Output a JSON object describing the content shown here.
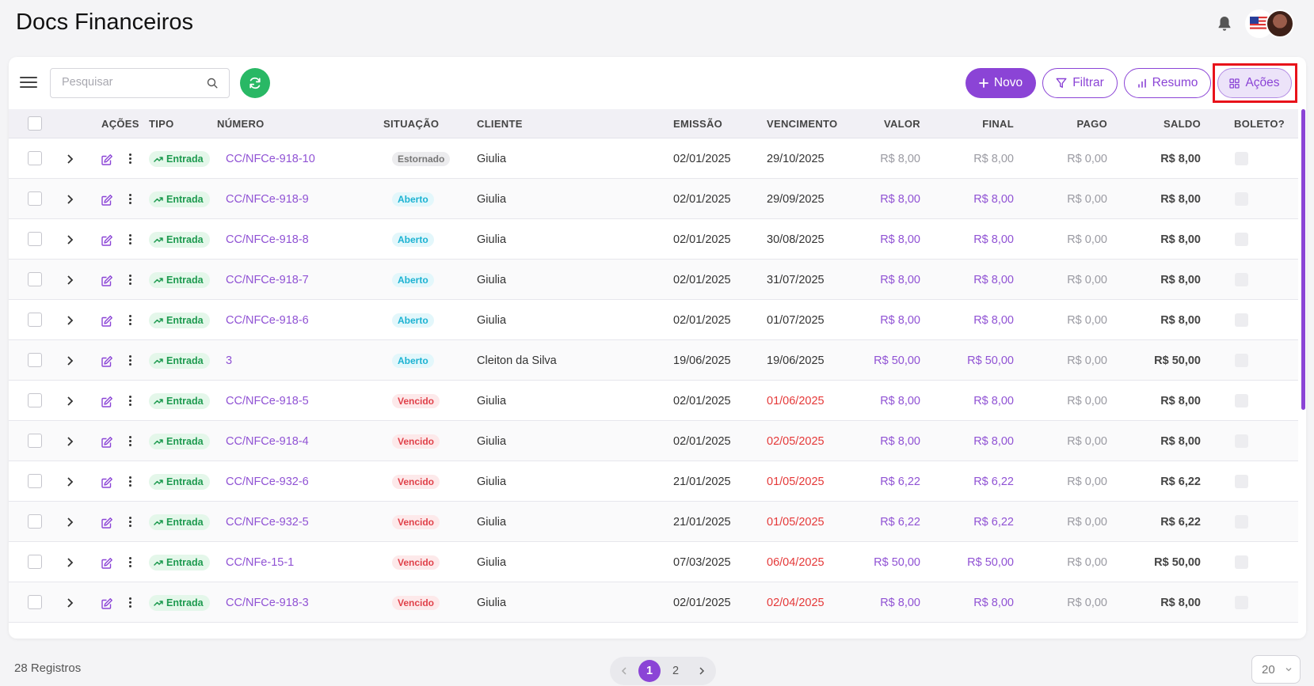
{
  "header": {
    "title": "Docs Financeiros"
  },
  "toolbar": {
    "search_placeholder": "Pesquisar",
    "novo_label": "Novo",
    "filtrar_label": "Filtrar",
    "resumo_label": "Resumo",
    "acoes_label": "Ações"
  },
  "table": {
    "columns": {
      "acoes": "AÇÕES",
      "tipo": "TIPO",
      "numero": "NÚMERO",
      "situacao": "SITUAÇÃO",
      "cliente": "CLIENTE",
      "emissao": "EMISSÃO",
      "vencimento": "VENCIMENTO",
      "valor": "VALOR",
      "final": "FINAL",
      "pago": "PAGO",
      "saldo": "SALDO",
      "boleto": "BOLETO?"
    },
    "rows": [
      {
        "tipo": "Entrada",
        "numero": "CC/NFCe-918-10",
        "situacao": "Estornado",
        "cliente": "Giulia",
        "emissao": "02/01/2025",
        "vencimento": "29/10/2025",
        "valor": "R$ 8,00",
        "final": "R$ 8,00",
        "pago": "R$ 0,00",
        "saldo": "R$ 8,00"
      },
      {
        "tipo": "Entrada",
        "numero": "CC/NFCe-918-9",
        "situacao": "Aberto",
        "cliente": "Giulia",
        "emissao": "02/01/2025",
        "vencimento": "29/09/2025",
        "valor": "R$ 8,00",
        "final": "R$ 8,00",
        "pago": "R$ 0,00",
        "saldo": "R$ 8,00"
      },
      {
        "tipo": "Entrada",
        "numero": "CC/NFCe-918-8",
        "situacao": "Aberto",
        "cliente": "Giulia",
        "emissao": "02/01/2025",
        "vencimento": "30/08/2025",
        "valor": "R$ 8,00",
        "final": "R$ 8,00",
        "pago": "R$ 0,00",
        "saldo": "R$ 8,00"
      },
      {
        "tipo": "Entrada",
        "numero": "CC/NFCe-918-7",
        "situacao": "Aberto",
        "cliente": "Giulia",
        "emissao": "02/01/2025",
        "vencimento": "31/07/2025",
        "valor": "R$ 8,00",
        "final": "R$ 8,00",
        "pago": "R$ 0,00",
        "saldo": "R$ 8,00"
      },
      {
        "tipo": "Entrada",
        "numero": "CC/NFCe-918-6",
        "situacao": "Aberto",
        "cliente": "Giulia",
        "emissao": "02/01/2025",
        "vencimento": "01/07/2025",
        "valor": "R$ 8,00",
        "final": "R$ 8,00",
        "pago": "R$ 0,00",
        "saldo": "R$ 8,00"
      },
      {
        "tipo": "Entrada",
        "numero": "3",
        "situacao": "Aberto",
        "cliente": "Cleiton da Silva",
        "emissao": "19/06/2025",
        "vencimento": "19/06/2025",
        "valor": "R$ 50,00",
        "final": "R$ 50,00",
        "pago": "R$ 0,00",
        "saldo": "R$ 50,00"
      },
      {
        "tipo": "Entrada",
        "numero": "CC/NFCe-918-5",
        "situacao": "Vencido",
        "cliente": "Giulia",
        "emissao": "02/01/2025",
        "vencimento": "01/06/2025",
        "valor": "R$ 8,00",
        "final": "R$ 8,00",
        "pago": "R$ 0,00",
        "saldo": "R$ 8,00"
      },
      {
        "tipo": "Entrada",
        "numero": "CC/NFCe-918-4",
        "situacao": "Vencido",
        "cliente": "Giulia",
        "emissao": "02/01/2025",
        "vencimento": "02/05/2025",
        "valor": "R$ 8,00",
        "final": "R$ 8,00",
        "pago": "R$ 0,00",
        "saldo": "R$ 8,00"
      },
      {
        "tipo": "Entrada",
        "numero": "CC/NFCe-932-6",
        "situacao": "Vencido",
        "cliente": "Giulia",
        "emissao": "21/01/2025",
        "vencimento": "01/05/2025",
        "valor": "R$ 6,22",
        "final": "R$ 6,22",
        "pago": "R$ 0,00",
        "saldo": "R$ 6,22"
      },
      {
        "tipo": "Entrada",
        "numero": "CC/NFCe-932-5",
        "situacao": "Vencido",
        "cliente": "Giulia",
        "emissao": "21/01/2025",
        "vencimento": "01/05/2025",
        "valor": "R$ 6,22",
        "final": "R$ 6,22",
        "pago": "R$ 0,00",
        "saldo": "R$ 6,22"
      },
      {
        "tipo": "Entrada",
        "numero": "CC/NFe-15-1",
        "situacao": "Vencido",
        "cliente": "Giulia",
        "emissao": "07/03/2025",
        "vencimento": "06/04/2025",
        "valor": "R$ 50,00",
        "final": "R$ 50,00",
        "pago": "R$ 0,00",
        "saldo": "R$ 50,00"
      },
      {
        "tipo": "Entrada",
        "numero": "CC/NFCe-918-3",
        "situacao": "Vencido",
        "cliente": "Giulia",
        "emissao": "02/01/2025",
        "vencimento": "02/04/2025",
        "valor": "R$ 8,00",
        "final": "R$ 8,00",
        "pago": "R$ 0,00",
        "saldo": "R$ 8,00"
      }
    ]
  },
  "footer": {
    "records": "28 Registros",
    "pages": [
      "1",
      "2"
    ],
    "current_page": "1",
    "per_page": "20"
  },
  "colors": {
    "accent": "#8b44d6",
    "refresh": "#29b865",
    "danger": "#e53838"
  }
}
